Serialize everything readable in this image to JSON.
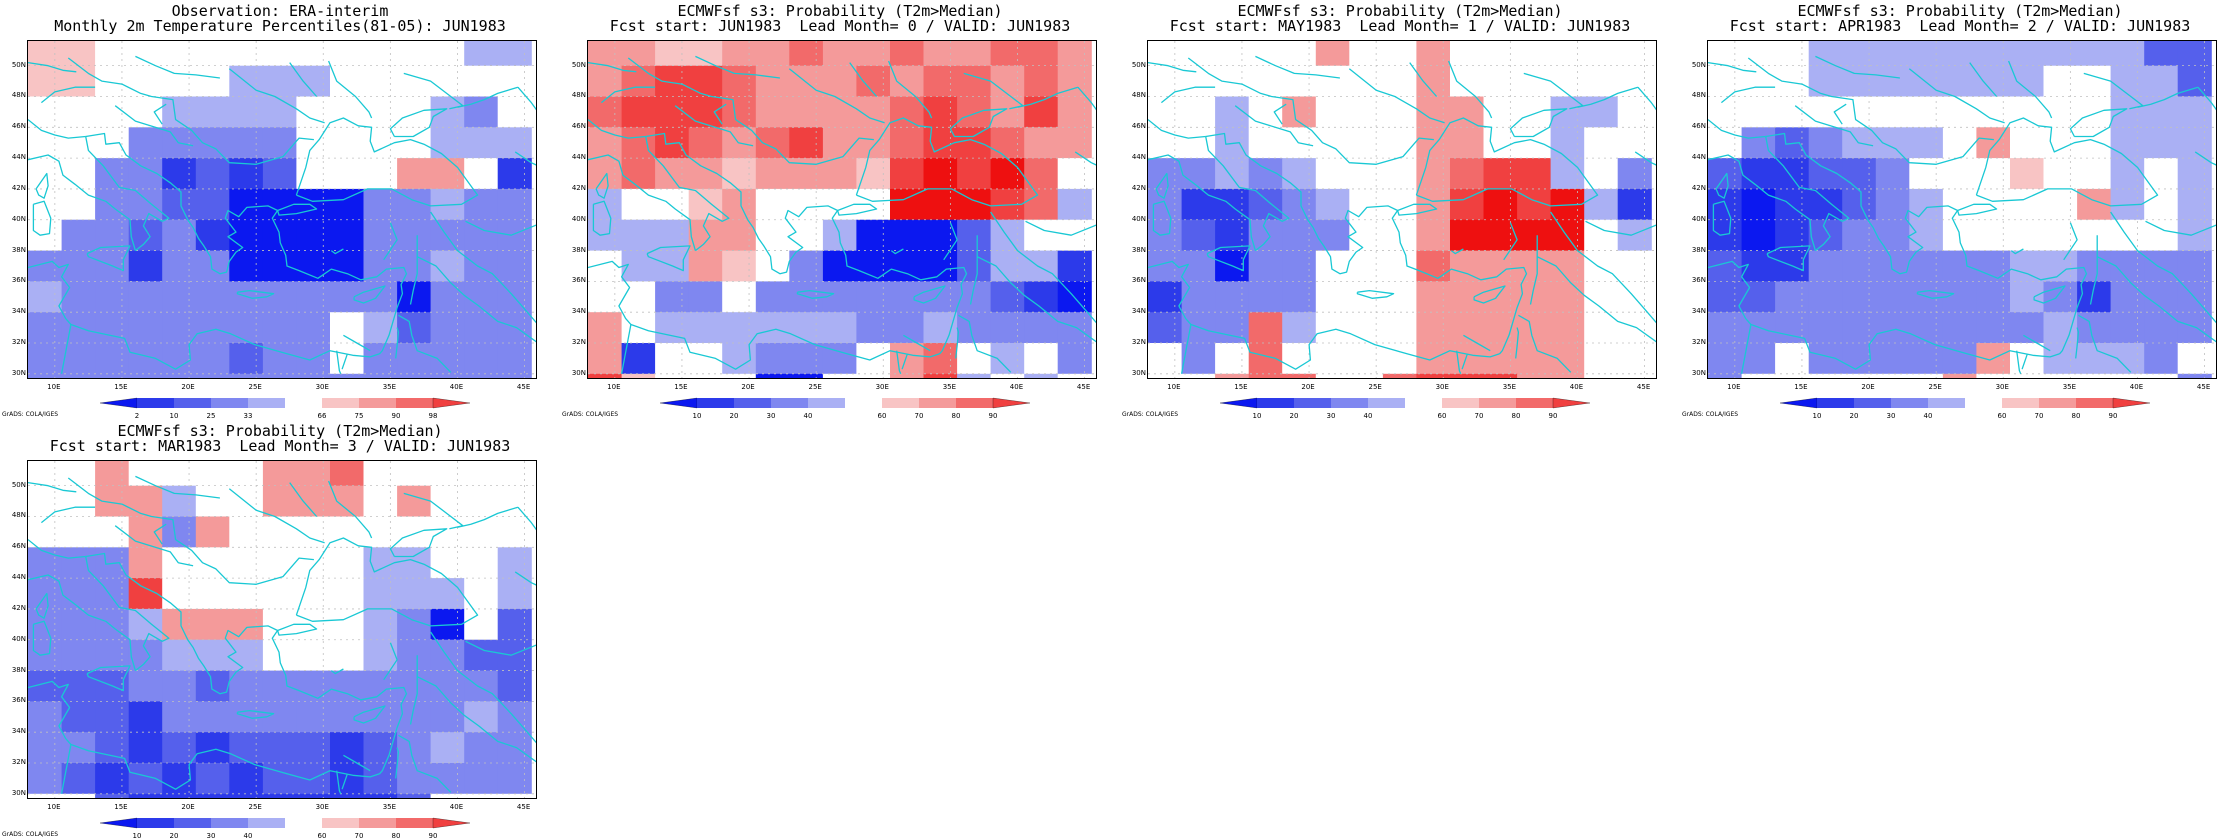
{
  "lat_labels": [
    "50N",
    "48N",
    "46N",
    "44N",
    "42N",
    "40N",
    "38N",
    "36N",
    "34N",
    "32N",
    "30N"
  ],
  "lon_labels": [
    "10E",
    "15E",
    "20E",
    "25E",
    "30E",
    "35E",
    "40E",
    "45E"
  ],
  "grads_label": "GrADS: COLA/IGES",
  "colors": {
    "r98": "#ee1010",
    "r90": "#f04040",
    "r80": "#f26a6a",
    "r70": "#f49a9a",
    "r60": "#f8c4c4",
    "w": "#ffffff",
    "b40": "#aab0f4",
    "b30": "#7f87f0",
    "b20": "#5560ec",
    "b10": "#2c3aea",
    "b0": "#0b18f0",
    "coast": "#19c8d4",
    "grid": "#c0c0c0"
  },
  "panels": [
    {
      "title1": "Observation: ERA-interim",
      "title2": "Monthly 2m Temperature Percentiles(81-05): JUN1983",
      "colorbar": [
        "2",
        "10",
        "25",
        "33",
        "66",
        "75",
        "90",
        "98"
      ],
      "grid": [
        "r60 r60 w w w w w w w w w w w b40 b40",
        "r60 r60 w w w w b40 b40 b40 w w w w w w",
        "w w w w b40 b40 b40 b40 w w w w b40 b30 w",
        "w w w b30 b30 b30 b30 b30 w w w w b40 b40 b40",
        "w w b30 b30 b10 b20 b10 b20 w w w r70 r70 w b10",
        "w w b30 b30 b20 b20 b0 b0 b0 b0 b30 b30 b40 b30 b30",
        "w b30 b30 b20 b30 b10 b0 b0 b0 b0 b30 b30 b30 b30 b30",
        "b30 b30 b30 b10 b30 b30 b0 b0 b0 b0 b30 b30 b40 b30 b30",
        "b40 b30 b30 b30 b30 b30 b30 b30 b30 b30 b30 b0 b30 b30 b30",
        "b30 b30 b30 b30 b30 b30 b30 b30 b30 w b40 b20 b30 b30 b30",
        "b30 b30 b30 b30 b30 b30 b20 b30 b30 w b30 b30 b30 b30 b30",
        "b30 b30 b30 b30 b30 b30 b30 b30 b30 b30 b30 b30 b30 b30 b30"
      ]
    },
    {
      "title1": "ECMWFsf s3: Probability (T2m>Median)",
      "title2": "Fcst start: JUN1983  Lead Month= 0 / VALID: JUN1983",
      "colorbar": [
        "10",
        "20",
        "30",
        "40",
        "60",
        "70",
        "80",
        "90"
      ],
      "grid": [
        "r70 r70 r60 r60 r70 r70 r80 r70 r70 r80 r70 r70 r80 r80 r70",
        "r70 r80 r90 r90 r80 r70 r70 r70 r80 r70 r80 r80 r70 r80 r70",
        "r80 r90 r90 r90 r80 r70 r70 r70 r70 r80 r90 r80 r70 r90 r70",
        "r70 r80 r90 r80 r70 r80 r90 r70 r70 r80 r90 r90 r80 r70 r70",
        "r70 r80 r70 r70 r60 r70 r70 r70 r60 r90 r98 r90 r98 r80 w",
        "b40 w w r60 r70 w w w w r98 r98 r98 r90 r80 b40",
        "b40 b40 b40 r70 r70 w w b40 b0 b0 b0 b20 b40 w w",
        "w b40 b40 r70 r60 w b30 b0 b0 b0 b0 b20 b40 b40 b10",
        "w w b30 b30 w b30 b30 b30 b30 b30 b30 b30 b20 b10 b0",
        "r70 w b40 b40 b40 b40 b40 b40 b30 b30 b40 b30 b30 b30 b30",
        "r70 b10 w w b40 b30 b30 b30 w r70 r80 w b40 w b30",
        "r90 r60 w w w b0 b0 w w r70 r90 b40 w b40 w"
      ]
    },
    {
      "title1": "ECMWFsf s3: Probability (T2m>Median)",
      "title2": "Fcst start: MAY1983  Lead Month= 1 / VALID: JUN1983",
      "colorbar": [
        "10",
        "20",
        "30",
        "40",
        "60",
        "70",
        "80",
        "90"
      ],
      "grid": [
        "w w w w w r70 w w r70 w w w w w w",
        "w w w w w w w w r70 w w w w w w",
        "w w b40 w r70 w w w r70 r70 w w b40 b40 w",
        "w w b40 w w w w w r70 r70 w w b40 w w",
        "b30 b30 b40 b30 b40 w w w r70 r80 r90 r90 b40 w b30",
        "b30 b10 b10 b20 b30 b40 w w r70 r90 r98 r90 r98 b40 b10",
        "b30 b20 b10 b30 b30 b30 w w r70 r98 r98 r98 r98 w b40",
        "b30 b30 b0 b30 b30 w w w r80 r70 r70 r70 r70 w w",
        "b10 b30 b30 b30 b30 w w w r70 r70 r70 r70 r70 w w",
        "b20 b30 b30 r80 b40 w w w r70 r70 r70 r70 r70 w w",
        "w b30 w r80 w w w w r70 r70 r70 r70 r70 w w",
        "w w r70 r80 r80 w w r80 r90 r90 r90 r70 r70 w w"
      ]
    },
    {
      "title1": "ECMWFsf s3: Probability (T2m>Median)",
      "title2": "Fcst start: APR1983  Lead Month= 2 / VALID: JUN1983",
      "colorbar": [
        "10",
        "20",
        "30",
        "40",
        "60",
        "70",
        "80",
        "90"
      ],
      "grid": [
        "w w w b40 b40 b40 b40 b40 b40 b40 b40 b40 b40 b20 b20",
        "w w w b40 b40 b40 b40 b40 b40 b40 w w b40 b40 b20",
        "w w w w w w w w w w w w b40 b40 b40",
        "w b30 b20 b30 b40 b40 b40 w r70 w w w b40 b40 b40",
        "b20 b10 b10 b20 b20 b30 w w w r60 w w b40 w b40",
        "b10 b0 b10 b10 b20 b30 b40 w w w w r70 b40 w b40",
        "b10 b0 b10 b20 b30 b30 b40 w w w w w w w b40",
        "b20 b10 b10 b30 b30 b30 b30 b30 b30 b40 b40 b30 b30 b30 b30",
        "b20 b20 b30 b30 b30 b30 b30 b30 b30 b40 b30 b10 b30 b30 b30",
        "b30 b30 b30 b30 b30 b30 b30 b30 b30 b30 b40 b30 b30 b30 b30",
        "b30 b30 w b30 b30 b30 b30 b30 r70 w b40 b40 b40 b30 w",
        "b30 w w w w w w r70 w w w w w w b30"
      ]
    },
    {
      "title1": "ECMWFsf s3: Probability (T2m>Median)",
      "title2": "Fcst start: MAR1983  Lead Month= 3 / VALID: JUN1983",
      "colorbar": [
        "10",
        "20",
        "30",
        "40",
        "60",
        "70",
        "80",
        "90"
      ],
      "grid": [
        "w w r70 w w w w r70 r70 r80 w w w w w",
        "w w r70 r70 b40 w w r70 r70 r70 w r70 w w w",
        "w w w r70 b30 r70 w w w w w w w w w",
        "b30 b30 b30 r70 w w w w w w b40 b40 w w b40",
        "b30 b30 b30 r90 w w w w w w b40 b40 b40 w b40",
        "b30 b30 b30 b40 r70 r70 r70 w w w b40 b30 b0 w b20",
        "b30 b30 b30 b30 b40 b40 b40 w w w b40 b30 b30 b20 b20",
        "b20 b20 b20 b30 b30 b20 b30 b30 b30 b30 b30 b30 b30 b30 b20",
        "b30 b20 b20 b10 b30 b30 b30 b30 b30 b30 b30 b30 b30 b40 b30",
        "b30 b30 b20 b10 b20 b10 b20 b20 b20 b10 b20 b30 b40 b30 b30",
        "b30 b20 b10 b20 b10 b20 b10 b20 b20 b10 b20 b30 b30 b30 b30",
        "w w b20 b10 b10 b10 b10 b10 b10 b10 b10 b20 w w w"
      ]
    }
  ]
}
